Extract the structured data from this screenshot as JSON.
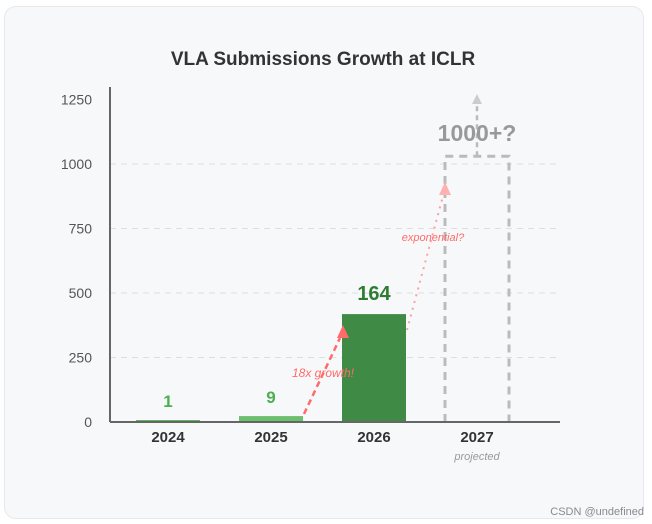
{
  "chart_data": {
    "type": "bar",
    "title": "VLA Submissions Growth at ICLR",
    "categories": [
      "2024",
      "2025",
      "2026",
      "2027"
    ],
    "category_sublabels": [
      "",
      "",
      "",
      "projected"
    ],
    "values": [
      1,
      9,
      164,
      null
    ],
    "value_labels": [
      "1",
      "9",
      "164",
      "1000+?"
    ],
    "projected": {
      "category": "2027",
      "label": "1000+?",
      "style": "dashed outline"
    },
    "yticks": [
      0,
      250,
      500,
      750,
      1000,
      1250
    ],
    "ylim": [
      0,
      1250
    ],
    "grid": "horizontal dashed",
    "annotations": [
      "18x growth!",
      "exponential?"
    ],
    "colors": {
      "bar_2024": "#5cb85c",
      "bar_2025": "#6cc06c",
      "bar_2026": "#3f8a45",
      "label_light": "#4caf50",
      "label_dark": "#2e7d32",
      "arrow": "#ff6b6b",
      "projection": "#bbbbbb"
    }
  },
  "watermark": "CSDN @undefined"
}
